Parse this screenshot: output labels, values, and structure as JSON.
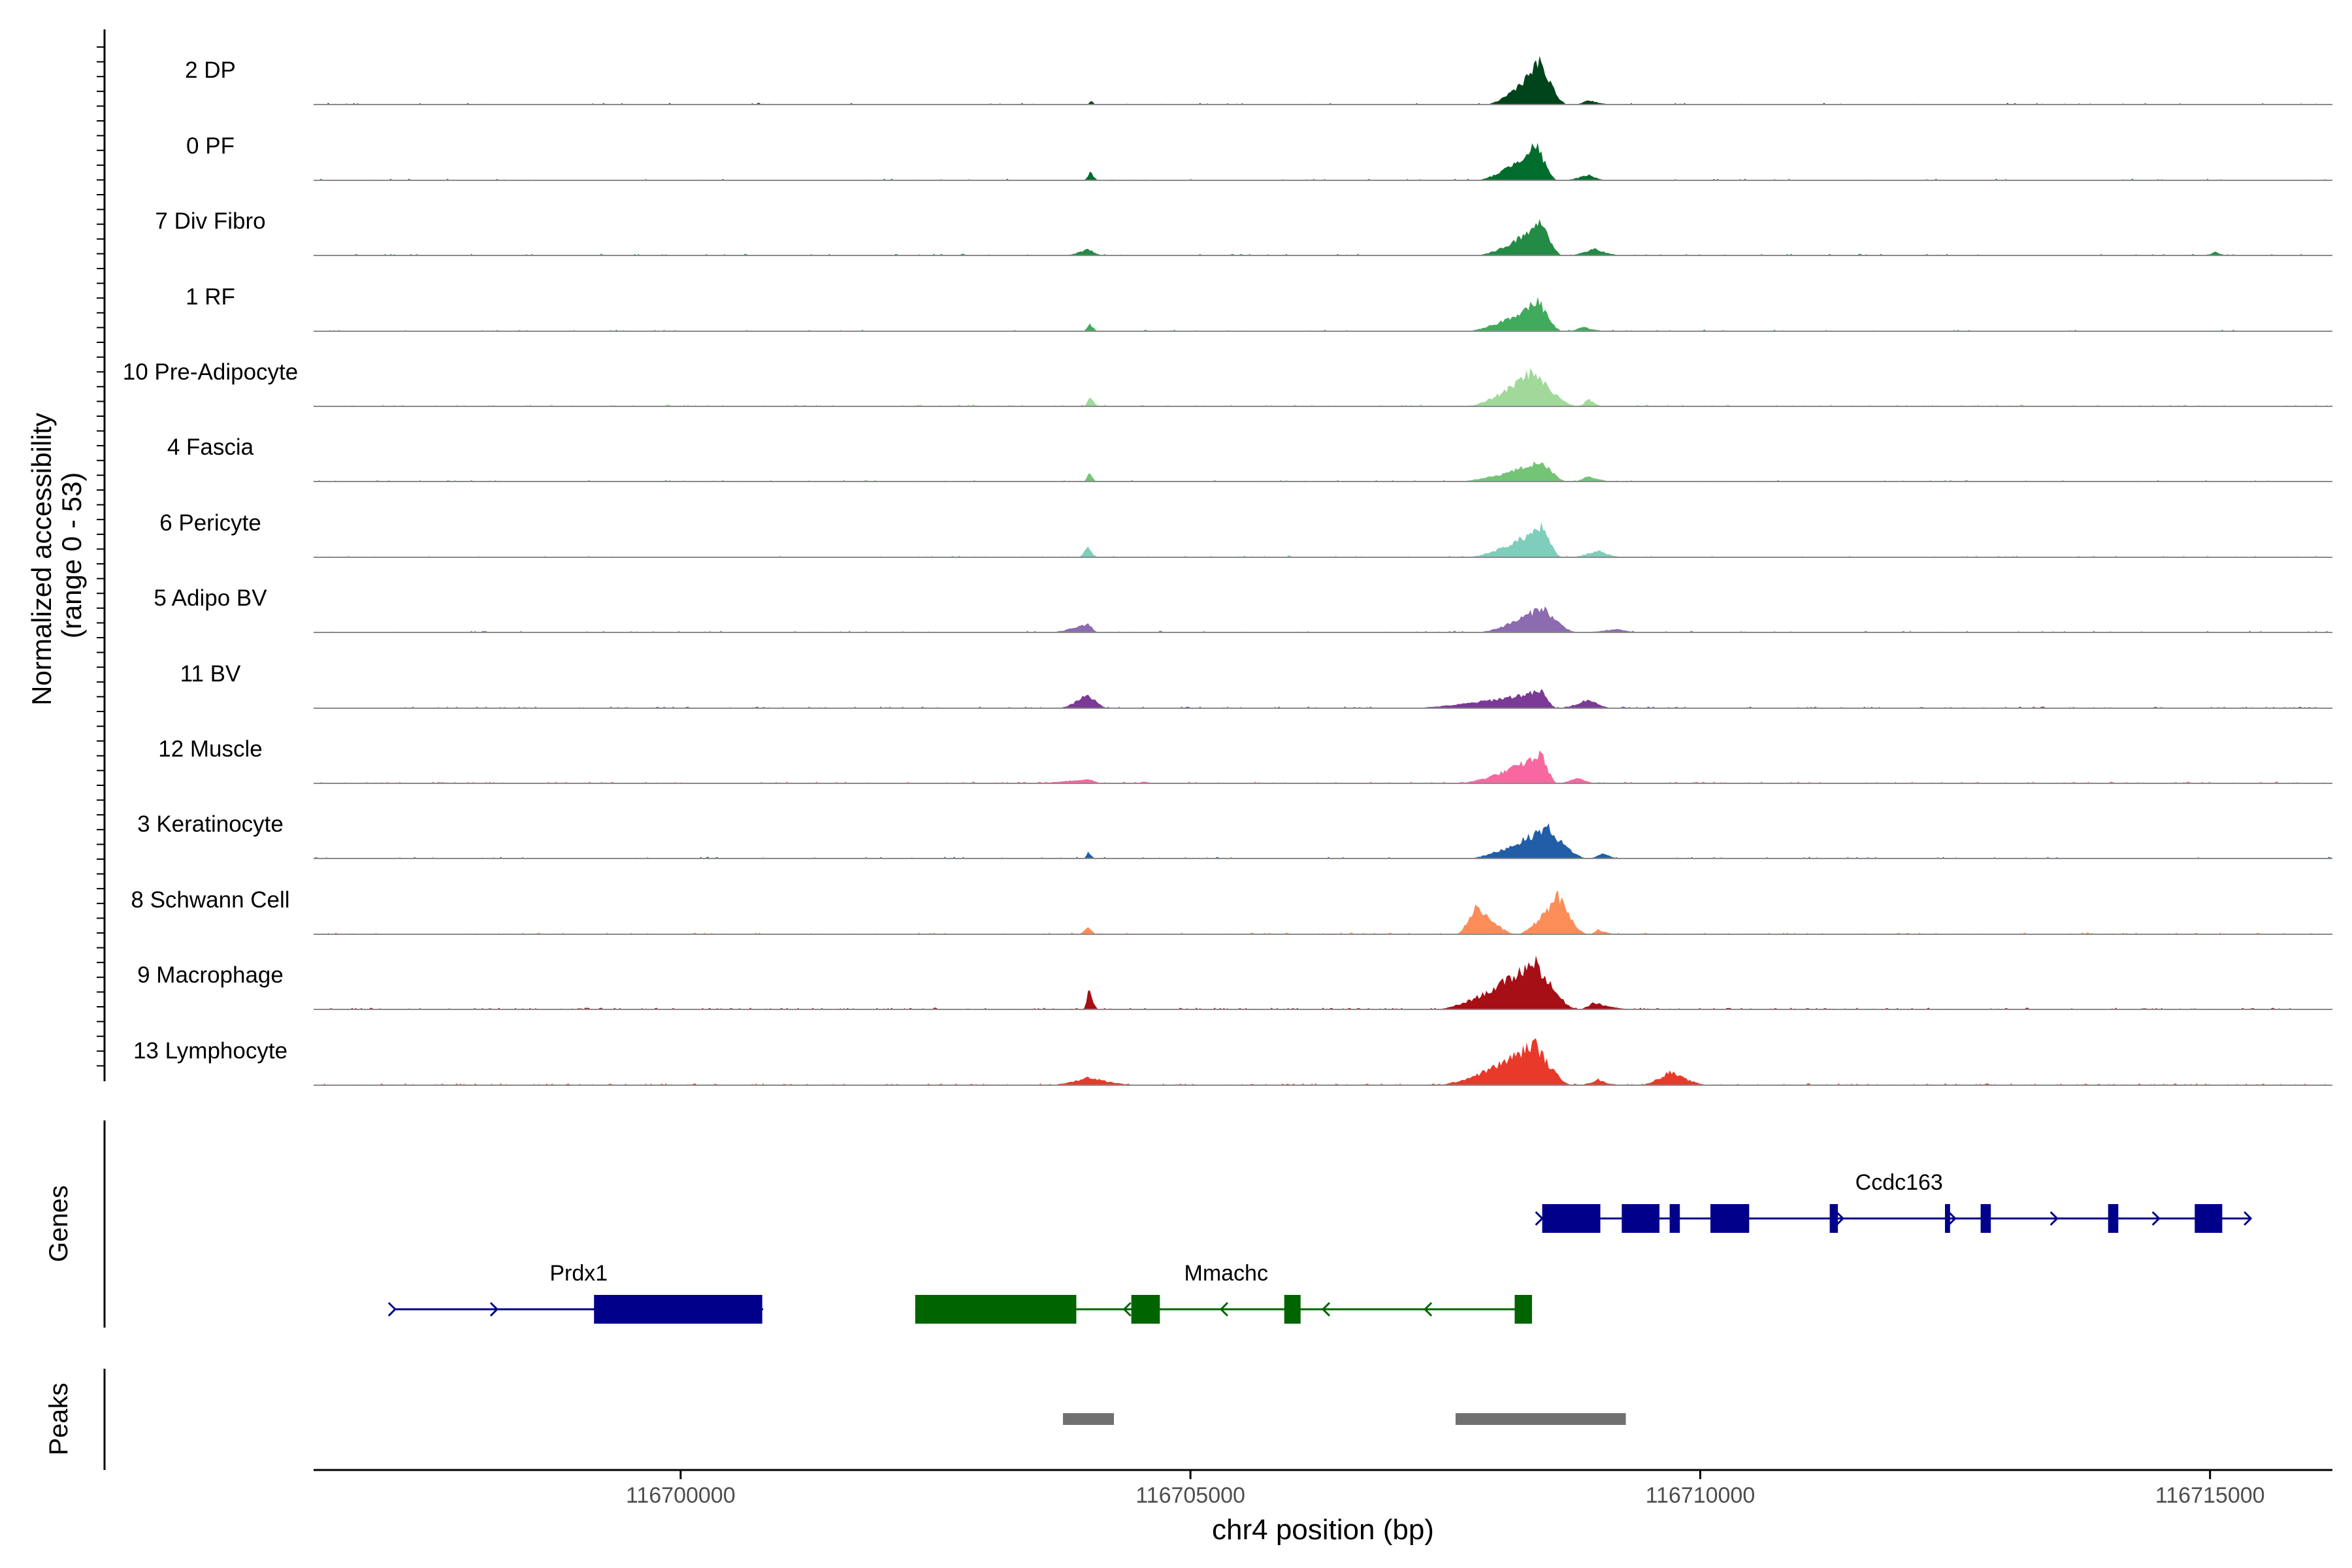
{
  "chart_data": {
    "type": "area",
    "title": "",
    "ylabel_line1": "Normalized accessibility",
    "ylabel_line2": "(range 0 - 53)",
    "xlabel": "chr4 position (bp)",
    "xlim": [
      116696400,
      116716200
    ],
    "ylim": [
      0,
      53
    ],
    "xticks": [
      {
        "value": 116700000,
        "label": "116700000"
      },
      {
        "value": 116705000,
        "label": "116705000"
      },
      {
        "value": 116710000,
        "label": "116710000"
      },
      {
        "value": 116715000,
        "label": "116715000"
      }
    ],
    "tracks": [
      {
        "name": "2 DP",
        "color": "#00441b",
        "noise": 0.08,
        "peaks": [
          [
            116703980,
            116704030,
            116704070,
            4
          ],
          [
            116707900,
            116708430,
            116708700,
            38
          ],
          [
            116708760,
            116708900,
            116709150,
            4
          ]
        ]
      },
      {
        "name": "0 PF",
        "color": "#006d2c",
        "noise": 0.1,
        "peaks": [
          [
            116703950,
            116704020,
            116704100,
            8
          ],
          [
            116707800,
            116708400,
            116708600,
            32
          ],
          [
            116708650,
            116708900,
            116709100,
            5
          ]
        ]
      },
      {
        "name": "7 Div Fibro",
        "color": "#238b45",
        "noise": 0.14,
        "peaks": [
          [
            116703760,
            116704000,
            116704150,
            6
          ],
          [
            116707800,
            116708450,
            116708650,
            30
          ],
          [
            116708700,
            116708950,
            116709250,
            6
          ],
          [
            116714950,
            116715050,
            116715200,
            3
          ]
        ]
      },
      {
        "name": "1 RF",
        "color": "#41ab5d",
        "noise": 0.1,
        "peaks": [
          [
            116703950,
            116704010,
            116704100,
            7
          ],
          [
            116707700,
            116708420,
            116708650,
            27
          ],
          [
            116708700,
            116708850,
            116709100,
            4
          ]
        ]
      },
      {
        "name": "10 Pre-Adipocyte",
        "color": "#a1d99b",
        "noise": 0.22,
        "peaks": [
          [
            116703950,
            116704020,
            116704100,
            10
          ],
          [
            116707700,
            116708360,
            116708800,
            32
          ],
          [
            116708810,
            116708900,
            116709050,
            7
          ]
        ]
      },
      {
        "name": "4 Fascia",
        "color": "#74c476",
        "noise": 0.1,
        "peaks": [
          [
            116703950,
            116704010,
            116704080,
            9
          ],
          [
            116707600,
            116708450,
            116708700,
            18
          ],
          [
            116708750,
            116708900,
            116709150,
            5
          ]
        ]
      },
      {
        "name": "6 Pericyte",
        "color": "#7fcdbb",
        "noise": 0.12,
        "peaks": [
          [
            116703900,
            116703990,
            116704100,
            9
          ],
          [
            116707700,
            116708450,
            116708650,
            27
          ],
          [
            116708700,
            116709000,
            116709250,
            6
          ]
        ]
      },
      {
        "name": "5 Adipo BV",
        "color": "#8c6bb1",
        "noise": 0.14,
        "peaks": [
          [
            116703600,
            116704000,
            116704100,
            8
          ],
          [
            116707800,
            116708450,
            116708800,
            23
          ],
          [
            116708800,
            116709200,
            116709400,
            3
          ]
        ]
      },
      {
        "name": "11 BV",
        "color": "#7a3a96",
        "noise": 0.24,
        "peaks": [
          [
            116703700,
            116703990,
            116704200,
            13
          ],
          [
            116707100,
            116708450,
            116708600,
            15
          ],
          [
            116708600,
            116708900,
            116709150,
            8
          ]
        ]
      },
      {
        "name": "12 Muscle",
        "color": "#f768a1",
        "noise": 0.24,
        "peaks": [
          [
            116707600,
            116708450,
            116708600,
            26
          ],
          [
            116708600,
            116708800,
            116709000,
            5
          ],
          [
            116703400,
            116704000,
            116704150,
            4
          ]
        ]
      },
      {
        "name": "3 Keratinocyte",
        "color": "#225ea8",
        "noise": 0.12,
        "peaks": [
          [
            116703950,
            116704000,
            116704070,
            6
          ],
          [
            116707700,
            116708500,
            116708900,
            28
          ],
          [
            116708900,
            116709050,
            116709200,
            5
          ]
        ]
      },
      {
        "name": "8 Schwann Cell",
        "color": "#fc8d59",
        "noise": 0.18,
        "peaks": [
          [
            116703900,
            116704000,
            116704080,
            8
          ],
          [
            116707600,
            116707800,
            116708200,
            26
          ],
          [
            116708200,
            116708600,
            116708900,
            35
          ],
          [
            116708900,
            116709000,
            116709200,
            4
          ]
        ]
      },
      {
        "name": "9 Macrophage",
        "color": "#a50f15",
        "noise": 0.3,
        "peaks": [
          [
            116703950,
            116704000,
            116704100,
            18
          ],
          [
            116707400,
            116708380,
            116708800,
            43
          ],
          [
            116708800,
            116708950,
            116709350,
            6
          ]
        ]
      },
      {
        "name": "13 Lymphocyte",
        "color": "#e8392a",
        "noise": 0.32,
        "peaks": [
          [
            116707400,
            116708380,
            116708750,
            37
          ],
          [
            116708800,
            116709000,
            116709200,
            5
          ],
          [
            116709400,
            116709700,
            116710100,
            12
          ],
          [
            116703600,
            116704000,
            116704500,
            7
          ]
        ]
      }
    ],
    "genes_label": "Genes",
    "peaks_label": "Peaks",
    "gene_color_plus": "#00008b",
    "gene_color_minus": "#006400",
    "genes": [
      {
        "name": "Ccdc163",
        "strand": "+",
        "row": 1,
        "start": 116708450,
        "end": 116715400,
        "label_pos": 116711950,
        "exons": [
          [
            116708450,
            116709020
          ],
          [
            116709230,
            116709600
          ],
          [
            116709700,
            116709800
          ],
          [
            116710100,
            116710480
          ],
          [
            116711270,
            116711350
          ],
          [
            116712400,
            116712450
          ],
          [
            116712750,
            116712850
          ],
          [
            116714000,
            116714100
          ],
          [
            116714850,
            116715120
          ]
        ],
        "arrows": [
          116708450,
          116711400,
          116712500,
          116713500,
          116714500,
          116715400
        ]
      },
      {
        "name": "Prdx1",
        "strand": "+",
        "row": 2,
        "start": 116697200,
        "end": 116700800,
        "label_pos": 116699000,
        "exons": [
          [
            116699150,
            116700800
          ]
        ],
        "arrows": [
          116697200,
          116698200,
          116700800
        ]
      },
      {
        "name": "Mmachc",
        "strand": "-",
        "row": 2,
        "start": 116702300,
        "end": 116708350,
        "label_pos": 116705350,
        "exons": [
          [
            116702300,
            116703880
          ],
          [
            116704420,
            116704700
          ],
          [
            116705920,
            116706080
          ],
          [
            116708180,
            116708350
          ]
        ],
        "arrows": [
          116704350,
          116705300,
          116706300,
          116707300
        ]
      }
    ],
    "peaks": [
      [
        116703750,
        116704250
      ],
      [
        116707600,
        116709270
      ]
    ],
    "peak_color": "#707070",
    "grid": false,
    "legend": "none"
  }
}
